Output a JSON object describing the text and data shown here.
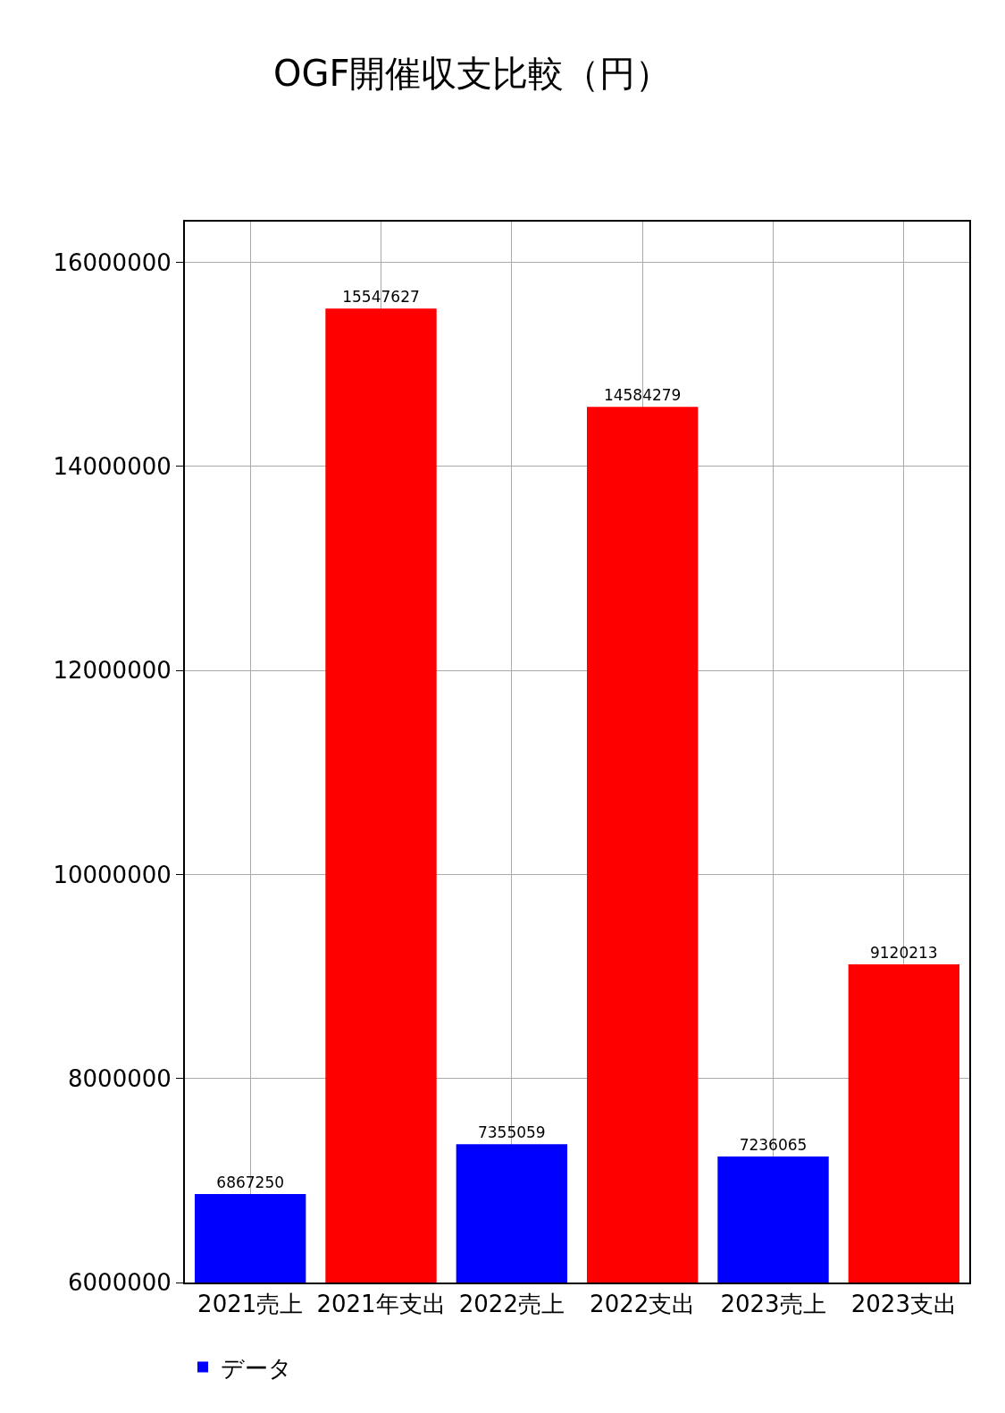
{
  "chart_data": {
    "type": "bar",
    "title": "OGF開催収支比較（円）",
    "categories": [
      "2021売上",
      "2021年支出",
      "2022売上",
      "2022支出",
      "2023売上",
      "2023支出"
    ],
    "series": [
      {
        "name": "データ",
        "colors": [
          "#0000ff",
          "#ff0000",
          "#0000ff",
          "#ff0000",
          "#0000ff",
          "#ff0000"
        ],
        "values": [
          6867250,
          15547627,
          7355059,
          14584279,
          7236065,
          9120213
        ]
      }
    ],
    "ylim": [
      6000000,
      16400000
    ],
    "yticks": [
      6000000,
      8000000,
      10000000,
      12000000,
      14000000,
      16000000
    ],
    "data_labels": true,
    "grid": true,
    "legend": "bottom left"
  }
}
